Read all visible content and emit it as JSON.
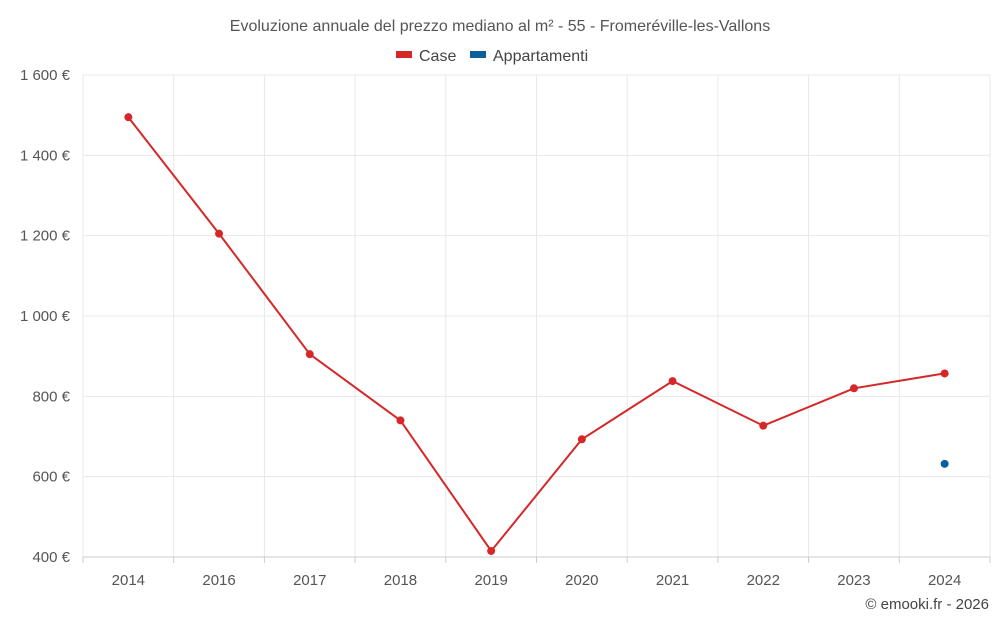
{
  "chart_data": {
    "type": "line",
    "title": "Evoluzione annuale del prezzo mediano al m² - 55 - Fromeréville-les-Vallons",
    "categories": [
      "2014",
      "2016",
      "2017",
      "2018",
      "2019",
      "2020",
      "2021",
      "2022",
      "2023",
      "2024"
    ],
    "series": [
      {
        "name": "Case",
        "color": "#d62728",
        "values": [
          1495,
          1205,
          905,
          740,
          415,
          693,
          838,
          727,
          820,
          857
        ]
      },
      {
        "name": "Appartamenti",
        "color": "#0b5f9c",
        "values": [
          null,
          null,
          null,
          null,
          null,
          null,
          null,
          null,
          null,
          632
        ]
      }
    ],
    "ylim": [
      400,
      1600
    ],
    "yticks": [
      {
        "value": 400,
        "label": "400 €"
      },
      {
        "value": 600,
        "label": "600 €"
      },
      {
        "value": 800,
        "label": "800 €"
      },
      {
        "value": 1000,
        "label": "1 000 €"
      },
      {
        "value": 1200,
        "label": "1 200 €"
      },
      {
        "value": 1400,
        "label": "1 400 €"
      },
      {
        "value": 1600,
        "label": "1 600 €"
      }
    ],
    "grid": true,
    "legend": "top-center"
  },
  "credit": "© emooki.fr - 2026"
}
